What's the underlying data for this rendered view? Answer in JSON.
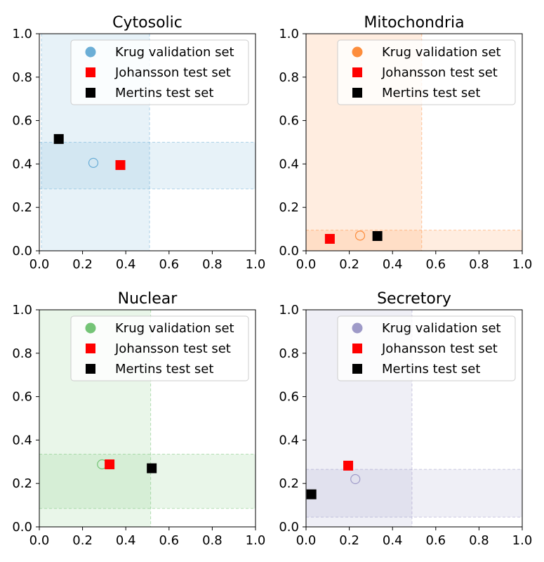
{
  "chart_data": [
    {
      "type": "scatter",
      "title": "Cytosolic",
      "color": "#6baed6",
      "xlim": [
        0,
        1
      ],
      "ylim": [
        0,
        1
      ],
      "xticks": [
        "0.0",
        "0.2",
        "0.4",
        "0.6",
        "0.8",
        "1.0"
      ],
      "yticks": [
        "0.0",
        "0.2",
        "0.4",
        "0.6",
        "0.8",
        "1.0"
      ],
      "x_band": [
        0.01,
        0.51
      ],
      "y_band": [
        0.285,
        0.5
      ],
      "legend_position": "top-right",
      "series": [
        {
          "name": "Krug validation set",
          "marker": "circle",
          "color": "#6baed6",
          "x": 0.25,
          "y": 0.405
        },
        {
          "name": "Johansson test set",
          "marker": "square",
          "color": "#ff0000",
          "x": 0.375,
          "y": 0.395
        },
        {
          "name": "Mertins test set",
          "marker": "square",
          "color": "#000000",
          "x": 0.09,
          "y": 0.515
        }
      ]
    },
    {
      "type": "scatter",
      "title": "Mitochondria",
      "color": "#fd8d3c",
      "xlim": [
        0,
        1
      ],
      "ylim": [
        0,
        1
      ],
      "xticks": [
        "0.0",
        "0.2",
        "0.4",
        "0.6",
        "0.8",
        "1.0"
      ],
      "yticks": [
        "0.0",
        "0.2",
        "0.4",
        "0.6",
        "0.8",
        "1.0"
      ],
      "x_band": [
        0.0,
        0.535
      ],
      "y_band": [
        0.0,
        0.095
      ],
      "legend_position": "top-right",
      "series": [
        {
          "name": "Krug validation set",
          "marker": "circle",
          "color": "#fd8d3c",
          "x": 0.25,
          "y": 0.07
        },
        {
          "name": "Johansson test set",
          "marker": "square",
          "color": "#ff0000",
          "x": 0.11,
          "y": 0.055
        },
        {
          "name": "Mertins test set",
          "marker": "square",
          "color": "#000000",
          "x": 0.33,
          "y": 0.068
        }
      ]
    },
    {
      "type": "scatter",
      "title": "Nuclear",
      "color": "#74c476",
      "xlim": [
        0,
        1
      ],
      "ylim": [
        0,
        1
      ],
      "xticks": [
        "0.0",
        "0.2",
        "0.4",
        "0.6",
        "0.8",
        "1.0"
      ],
      "yticks": [
        "0.0",
        "0.2",
        "0.4",
        "0.6",
        "0.8",
        "1.0"
      ],
      "x_band": [
        0.0,
        0.515
      ],
      "y_band": [
        0.085,
        0.335
      ],
      "legend_position": "top-right",
      "series": [
        {
          "name": "Krug validation set",
          "marker": "circle",
          "color": "#74c476",
          "x": 0.29,
          "y": 0.288
        },
        {
          "name": "Johansson test set",
          "marker": "square",
          "color": "#ff0000",
          "x": 0.325,
          "y": 0.288
        },
        {
          "name": "Mertins test set",
          "marker": "square",
          "color": "#000000",
          "x": 0.52,
          "y": 0.27
        }
      ]
    },
    {
      "type": "scatter",
      "title": "Secretory",
      "color": "#9e9ac8",
      "xlim": [
        0,
        1
      ],
      "ylim": [
        0,
        1
      ],
      "xticks": [
        "0.0",
        "0.2",
        "0.4",
        "0.6",
        "0.8",
        "1.0"
      ],
      "yticks": [
        "0.0",
        "0.2",
        "0.4",
        "0.6",
        "0.8",
        "1.0"
      ],
      "x_band": [
        0.0,
        0.49
      ],
      "y_band": [
        0.045,
        0.265
      ],
      "legend_position": "top-right",
      "series": [
        {
          "name": "Krug validation set",
          "marker": "circle",
          "color": "#9e9ac8",
          "x": 0.228,
          "y": 0.22
        },
        {
          "name": "Johansson test set",
          "marker": "square",
          "color": "#ff0000",
          "x": 0.195,
          "y": 0.282
        },
        {
          "name": "Mertins test set",
          "marker": "square",
          "color": "#000000",
          "x": 0.025,
          "y": 0.15
        }
      ]
    }
  ]
}
